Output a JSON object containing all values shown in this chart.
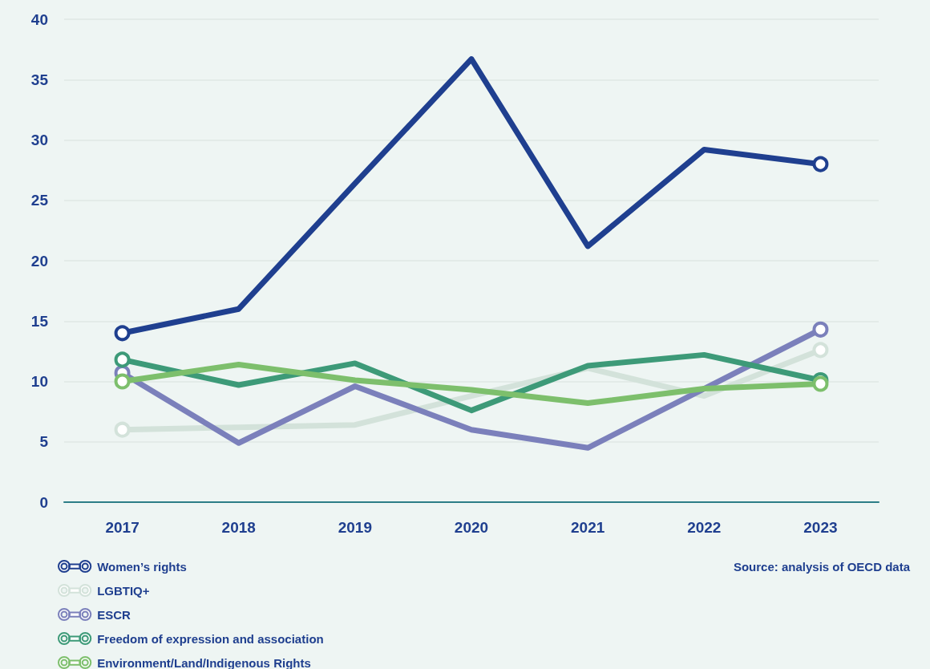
{
  "chart_data": {
    "type": "line",
    "categories": [
      "2017",
      "2018",
      "2019",
      "2020",
      "2021",
      "2022",
      "2023"
    ],
    "series": [
      {
        "name": "Women’s rights",
        "color": "#1f3f8f",
        "values": [
          14,
          16,
          26.4,
          36.7,
          21.2,
          29.2,
          28
        ]
      },
      {
        "name": "LGBTIQ+",
        "color": "#d3e2da",
        "values": [
          6,
          6.2,
          6.4,
          8.8,
          11.1,
          8.8,
          12.6
        ]
      },
      {
        "name": "ESCR",
        "color": "#7b80bb",
        "values": [
          10.7,
          4.9,
          9.6,
          6,
          4.5,
          9.4,
          14.3
        ]
      },
      {
        "name": "Freedom of expression and association",
        "color": "#3d9a78",
        "values": [
          11.8,
          9.7,
          11.5,
          7.6,
          11.3,
          12.2,
          10.1
        ]
      },
      {
        "name": "Environment/Land/Indigenous Rights",
        "color": "#7dbf6c",
        "values": [
          10,
          11.4,
          10.1,
          9.3,
          8.2,
          9.4,
          9.8
        ]
      }
    ],
    "ylim": [
      0,
      40
    ],
    "yticks": [
      0,
      5,
      10,
      15,
      20,
      25,
      30,
      35,
      40
    ],
    "grid": "y",
    "legend": "bottom left",
    "line_style": "solid",
    "annotations": [
      "Source: analysis of OECD data"
    ]
  }
}
